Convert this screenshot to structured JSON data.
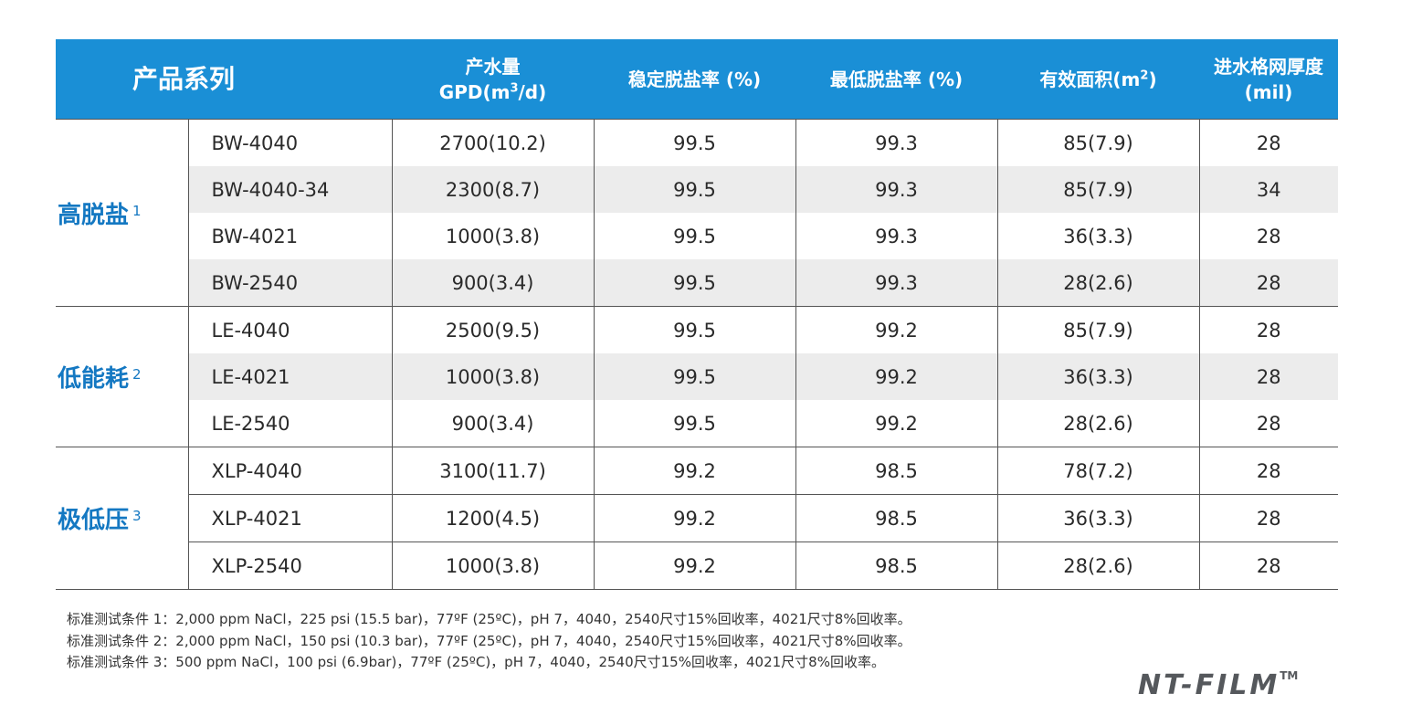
{
  "table": {
    "headers": {
      "series": "产品系列",
      "flow_line1": "产水量",
      "flow_line2_pre": "GPD(m",
      "flow_line2_sup": "3",
      "flow_line2_post": "/d)",
      "stable_rejection": "稳定脱盐率 (%)",
      "min_rejection": "最低脱盐率 (%)",
      "area_pre": "有效面积(m",
      "area_sup": "2",
      "area_post": ")",
      "spacer_line1": "进水格网厚度",
      "spacer_line2": "(mil)"
    },
    "groups": [
      {
        "name": "高脱盐",
        "note": "1",
        "rows": [
          {
            "model": "BW-4040",
            "flow": "2700(10.2)",
            "stable": "99.5",
            "min": "99.3",
            "area": "85(7.9)",
            "spacer": "28"
          },
          {
            "model": "BW-4040-34",
            "flow": "2300(8.7)",
            "stable": "99.5",
            "min": "99.3",
            "area": "85(7.9)",
            "spacer": "34"
          },
          {
            "model": "BW-4021",
            "flow": "1000(3.8)",
            "stable": "99.5",
            "min": "99.3",
            "area": "36(3.3)",
            "spacer": "28"
          },
          {
            "model": "BW-2540",
            "flow": "900(3.4)",
            "stable": "99.5",
            "min": "99.3",
            "area": "28(2.6)",
            "spacer": "28"
          }
        ]
      },
      {
        "name": "低能耗",
        "note": "2",
        "rows": [
          {
            "model": "LE-4040",
            "flow": "2500(9.5)",
            "stable": "99.5",
            "min": "99.2",
            "area": "85(7.9)",
            "spacer": "28"
          },
          {
            "model": "LE-4021",
            "flow": "1000(3.8)",
            "stable": "99.5",
            "min": "99.2",
            "area": "36(3.3)",
            "spacer": "28"
          },
          {
            "model": "LE-2540",
            "flow": "900(3.4)",
            "stable": "99.5",
            "min": "99.2",
            "area": "28(2.6)",
            "spacer": "28"
          }
        ]
      },
      {
        "name": "极低压",
        "note": "3",
        "rows": [
          {
            "model": "XLP-4040",
            "flow": "3100(11.7)",
            "stable": "99.2",
            "min": "98.5",
            "area": "78(7.2)",
            "spacer": "28"
          },
          {
            "model": "XLP-4021",
            "flow": "1200(4.5)",
            "stable": "99.2",
            "min": "98.5",
            "area": "36(3.3)",
            "spacer": "28"
          },
          {
            "model": "XLP-2540",
            "flow": "1000(3.8)",
            "stable": "99.2",
            "min": "98.5",
            "area": "28(2.6)",
            "spacer": "28"
          }
        ]
      }
    ]
  },
  "footnotes": [
    "标准测试条件 1：2,000 ppm NaCl，225 psi (15.5 bar)，77ºF (25ºC)，pH 7，4040，2540尺寸15%回收率，4021尺寸8%回收率。",
    "标准测试条件 2：2,000 ppm NaCl，150 psi (10.3 bar)，77ºF (25ºC)，pH 7，4040，2540尺寸15%回收率，4021尺寸8%回收率。",
    "标准测试条件 3：500 ppm NaCl，100 psi (6.9bar)，77ºF (25ºC)，pH 7，4040，2540尺寸15%回收率，4021尺寸8%回收率。"
  ],
  "brand": {
    "name": "NT-FILM",
    "trademark": "TM"
  },
  "colors": {
    "header_bg": "#1a8fd6",
    "group_label": "#1478c2",
    "shaded_row": "#ececec"
  }
}
